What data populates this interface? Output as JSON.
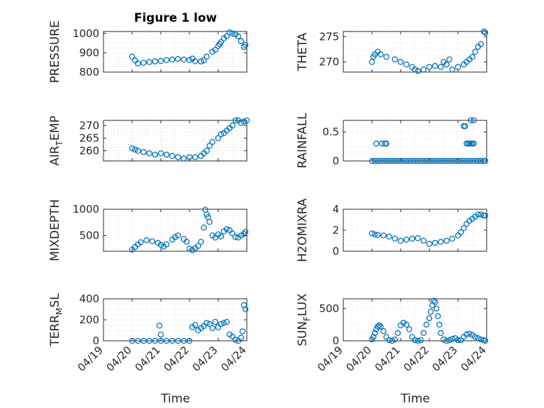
{
  "figure": {
    "title": "Figure 1 low"
  },
  "x_shared": {
    "label": "Time",
    "ticks": [
      "04/19",
      "04/20",
      "04/21",
      "04/22",
      "04/23",
      "04/24"
    ]
  },
  "chart_data": [
    {
      "type": "scatter",
      "ylabel": "PRESSURE",
      "ylim": [
        800,
        1010
      ],
      "yticks": [
        800,
        900,
        1000
      ],
      "ytick_labels": [
        "800",
        "900",
        "1000"
      ],
      "grid": true,
      "marker": "circle",
      "color": "#0072BD",
      "x": [
        1.0,
        1.1,
        1.2,
        1.4,
        1.6,
        1.8,
        2.0,
        2.2,
        2.4,
        2.6,
        2.8,
        3.0,
        3.1,
        3.2,
        3.4,
        3.5,
        3.6,
        3.8,
        3.9,
        4.0,
        4.05,
        4.1,
        4.2,
        4.3,
        4.4,
        4.5,
        4.6,
        4.7,
        4.8,
        4.9,
        4.95
      ],
      "y": [
        880,
        860,
        845,
        848,
        852,
        855,
        858,
        862,
        865,
        868,
        865,
        862,
        870,
        856,
        855,
        860,
        880,
        905,
        915,
        935,
        945,
        955,
        975,
        985,
        1005,
        1000,
        995,
        985,
        960,
        930,
        940
      ]
    },
    {
      "type": "scatter",
      "ylabel": "THETA",
      "ylim": [
        268,
        276
      ],
      "yticks": [
        270,
        275
      ],
      "ytick_labels": [
        "270",
        "275"
      ],
      "grid": true,
      "marker": "circle",
      "color": "#0072BD",
      "x": [
        1.0,
        1.05,
        1.1,
        1.2,
        1.3,
        1.5,
        1.8,
        2.0,
        2.2,
        2.4,
        2.5,
        2.6,
        2.8,
        3.0,
        3.2,
        3.4,
        3.5,
        3.6,
        3.7,
        3.8,
        4.0,
        4.2,
        4.3,
        4.4,
        4.5,
        4.6,
        4.7,
        4.8,
        4.9,
        4.95
      ],
      "y": [
        270,
        271,
        271.5,
        272,
        271.5,
        271,
        270.5,
        270,
        269.5,
        269,
        268.5,
        268.2,
        268.5,
        269,
        269.2,
        269,
        270,
        269.5,
        270.5,
        268.5,
        269,
        269.5,
        270,
        270.5,
        271,
        272,
        273,
        273.5,
        276,
        275.8
      ]
    },
    {
      "type": "scatter",
      "ylabel": "AIR_TEMP",
      "ylim": [
        256,
        272
      ],
      "yticks": [
        260,
        265,
        270
      ],
      "ytick_labels": [
        "260",
        "265",
        "270"
      ],
      "grid": true,
      "marker": "circle",
      "color": "#0072BD",
      "x": [
        1.0,
        1.1,
        1.2,
        1.4,
        1.6,
        1.8,
        2.0,
        2.2,
        2.4,
        2.6,
        2.8,
        3.0,
        3.2,
        3.4,
        3.5,
        3.6,
        3.7,
        3.8,
        4.0,
        4.1,
        4.2,
        4.3,
        4.4,
        4.5,
        4.6,
        4.7,
        4.8,
        4.9,
        5.0
      ],
      "y": [
        261,
        260.5,
        260,
        259.5,
        259,
        258.5,
        259,
        258.5,
        258,
        257.5,
        257,
        257.5,
        257.5,
        258,
        259,
        260,
        262,
        263.5,
        265,
        266.5,
        267,
        268,
        269,
        270,
        272,
        272,
        271,
        271.5,
        272
      ]
    },
    {
      "type": "scatter",
      "ylabel": "RAINFALL",
      "ylim": [
        0,
        0.7
      ],
      "yticks": [
        0,
        0.5
      ],
      "ytick_labels": [
        "0",
        "0.5"
      ],
      "grid": true,
      "marker": "circle",
      "color": "#0072BD",
      "x": [
        1.0,
        1.1,
        1.2,
        1.3,
        1.4,
        1.5,
        1.6,
        1.7,
        1.8,
        1.9,
        2.0,
        2.1,
        2.2,
        2.3,
        2.4,
        2.5,
        2.6,
        2.7,
        2.8,
        2.9,
        3.0,
        3.1,
        3.2,
        3.3,
        3.4,
        3.5,
        3.6,
        3.7,
        3.8,
        3.9,
        4.0,
        4.1,
        4.2,
        4.3,
        4.4,
        4.5,
        4.6,
        4.7,
        4.8,
        4.9,
        1.15,
        1.35,
        1.45,
        1.5,
        4.2,
        4.25,
        4.3,
        4.35,
        4.4,
        4.45,
        4.5,
        4.55,
        4.45,
        4.55,
        4.9,
        4.95
      ],
      "y": [
        0,
        0,
        0,
        0,
        0,
        0,
        0,
        0,
        0,
        0,
        0,
        0,
        0,
        0,
        0,
        0,
        0,
        0,
        0,
        0,
        0,
        0,
        0,
        0,
        0,
        0,
        0,
        0,
        0,
        0,
        0,
        0,
        0,
        0,
        0,
        0,
        0,
        0,
        0,
        0,
        0.3,
        0.3,
        0.3,
        0.3,
        0.6,
        0.6,
        0.3,
        0.3,
        0.3,
        0.3,
        0.3,
        0.3,
        0.7,
        0.7,
        0,
        0
      ]
    },
    {
      "type": "scatter",
      "ylabel": "MIXDEPTH",
      "ylim": [
        200,
        1000
      ],
      "yticks": [
        500,
        1000
      ],
      "ytick_labels": [
        "500",
        "1000"
      ],
      "grid": true,
      "marker": "circle",
      "color": "#0072BD",
      "x": [
        1.0,
        1.1,
        1.2,
        1.3,
        1.5,
        1.7,
        1.9,
        2.0,
        2.1,
        2.2,
        2.4,
        2.5,
        2.6,
        2.8,
        2.9,
        3.0,
        3.1,
        3.2,
        3.3,
        3.4,
        3.5,
        3.55,
        3.6,
        3.65,
        3.7,
        3.8,
        3.9,
        4.0,
        4.1,
        4.2,
        4.3,
        4.4,
        4.5,
        4.6,
        4.7,
        4.8,
        4.9,
        4.95
      ],
      "y": [
        230,
        280,
        330,
        370,
        410,
        390,
        360,
        320,
        290,
        330,
        420,
        470,
        500,
        430,
        380,
        250,
        220,
        260,
        300,
        380,
        650,
        990,
        900,
        850,
        760,
        500,
        460,
        520,
        480,
        580,
        620,
        600,
        540,
        470,
        460,
        500,
        530,
        570
      ]
    },
    {
      "type": "scatter",
      "ylabel": "H2OMIXRA",
      "ylim": [
        0,
        4
      ],
      "yticks": [
        0,
        2,
        4
      ],
      "ytick_labels": [
        "0",
        "2",
        "4"
      ],
      "grid": true,
      "marker": "circle",
      "color": "#0072BD",
      "x": [
        1.0,
        1.1,
        1.2,
        1.4,
        1.6,
        1.8,
        2.0,
        2.2,
        2.4,
        2.6,
        2.8,
        3.0,
        3.2,
        3.4,
        3.6,
        3.8,
        4.0,
        4.1,
        4.2,
        4.3,
        4.4,
        4.5,
        4.6,
        4.7,
        4.8,
        4.9,
        4.95
      ],
      "y": [
        1.7,
        1.6,
        1.55,
        1.5,
        1.4,
        1.2,
        1.0,
        1.1,
        1.2,
        1.25,
        1.0,
        0.7,
        0.8,
        0.9,
        1.0,
        1.2,
        1.5,
        1.8,
        2.2,
        2.6,
        2.9,
        3.1,
        3.3,
        3.5,
        3.5,
        3.4,
        3.4
      ]
    },
    {
      "type": "scatter",
      "ylabel": "TERR_MSL",
      "ylim": [
        0,
        400
      ],
      "yticks": [
        0,
        200,
        400
      ],
      "ytick_labels": [
        "0",
        "200",
        "400"
      ],
      "grid": true,
      "marker": "circle",
      "color": "#0072BD",
      "x": [
        1.0,
        1.2,
        1.4,
        1.6,
        1.8,
        2.0,
        2.2,
        2.4,
        2.6,
        2.8,
        3.0,
        1.95,
        2.0,
        3.1,
        3.2,
        3.3,
        3.4,
        3.5,
        3.6,
        3.7,
        3.8,
        3.9,
        4.0,
        4.1,
        4.2,
        4.3,
        4.4,
        4.5,
        4.6,
        4.7,
        4.8,
        4.85,
        4.9,
        4.95
      ],
      "y": [
        0,
        0,
        0,
        0,
        0,
        0,
        0,
        0,
        0,
        0,
        0,
        145,
        60,
        130,
        150,
        100,
        120,
        140,
        170,
        160,
        120,
        180,
        130,
        160,
        170,
        180,
        60,
        40,
        10,
        0,
        30,
        90,
        340,
        300
      ]
    },
    {
      "type": "scatter",
      "ylabel": "SUN_FLUX",
      "ylim": [
        0,
        650
      ],
      "yticks": [
        0,
        500
      ],
      "ytick_labels": [
        "0",
        "500"
      ],
      "grid": true,
      "marker": "circle",
      "color": "#0072BD",
      "x": [
        1.0,
        1.05,
        1.1,
        1.15,
        1.2,
        1.25,
        1.3,
        1.4,
        1.5,
        1.6,
        1.7,
        1.8,
        1.9,
        2.0,
        2.1,
        2.2,
        2.3,
        2.4,
        2.5,
        2.6,
        2.7,
        2.8,
        2.9,
        3.0,
        3.05,
        3.1,
        3.15,
        3.2,
        3.25,
        3.3,
        3.35,
        3.4,
        3.5,
        3.6,
        3.7,
        3.8,
        3.9,
        4.0,
        4.1,
        4.2,
        4.3,
        4.4,
        4.5,
        4.6,
        4.7,
        4.8,
        4.9,
        4.95
      ],
      "y": [
        20,
        60,
        120,
        180,
        220,
        240,
        220,
        150,
        60,
        10,
        0,
        20,
        120,
        240,
        280,
        250,
        180,
        60,
        10,
        0,
        10,
        120,
        250,
        350,
        450,
        550,
        620,
        600,
        500,
        380,
        250,
        120,
        20,
        0,
        10,
        30,
        40,
        10,
        10,
        60,
        100,
        110,
        90,
        60,
        40,
        20,
        10,
        0
      ]
    }
  ]
}
